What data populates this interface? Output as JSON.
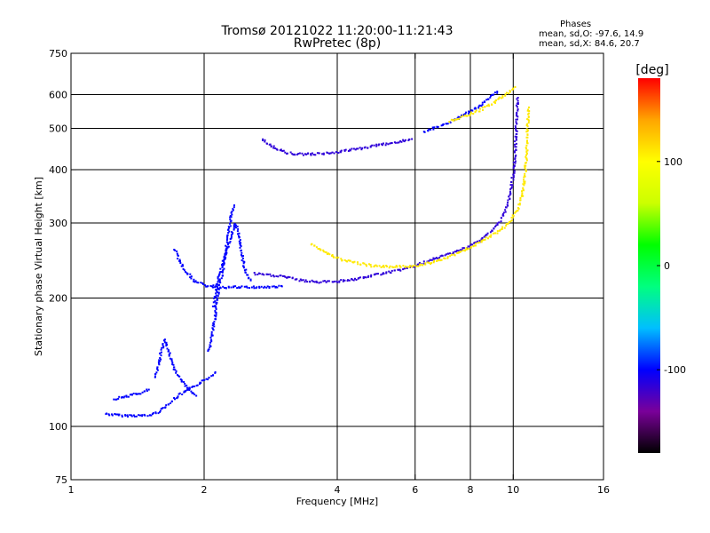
{
  "header": {
    "title_line1": "Tromsø 20121022 11:20:00-11:21:43",
    "title_line2": "RwPretec (8p)"
  },
  "phases": {
    "title": "Phases",
    "o_line": "mean, sd,O: -97.6, 14.9",
    "x_line": "mean, sd,X: 84.6, 20.7"
  },
  "chart_data": {
    "type": "scatter",
    "title": "Tromsø 20121022 11:20:00-11:21:43",
    "subtitle": "RwPretec (8p)",
    "xlabel": "Frequency [MHz]",
    "ylabel": "Stationary phase Virtual Height [km]",
    "x_scale": "log",
    "y_scale": "log",
    "xlim": [
      1,
      16
    ],
    "ylim": [
      75,
      750
    ],
    "x_ticks": [
      1,
      2,
      4,
      6,
      8,
      10,
      16
    ],
    "x_tick_labels": [
      "1",
      "2",
      "4",
      "6",
      "8",
      "10",
      "16"
    ],
    "y_ticks": [
      75,
      100,
      200,
      300,
      400,
      500,
      600,
      750
    ],
    "y_tick_labels": [
      "75",
      "100",
      "200",
      "300",
      "400",
      "500",
      "600",
      "750"
    ],
    "x_grid": [
      2,
      4,
      6,
      8,
      10
    ],
    "y_grid": [
      100,
      200,
      300,
      400,
      500,
      600
    ],
    "grid": true,
    "colorbar": {
      "label": "[deg]",
      "min": -180,
      "max": 180,
      "ticks": [
        100,
        0,
        -100
      ],
      "tick_labels": [
        "100",
        "0",
        "-100"
      ],
      "colors": [
        "#000000",
        "#7a0099",
        "#0000ff",
        "#00bfff",
        "#00ff7f",
        "#00ff00",
        "#ccff00",
        "#ffff00",
        "#ffa500",
        "#ff0000"
      ]
    },
    "traces": [
      {
        "mode": "O",
        "phase": -100,
        "points": [
          [
            1.2,
            107
          ],
          [
            1.3,
            106
          ],
          [
            1.4,
            106
          ],
          [
            1.5,
            106
          ],
          [
            1.57,
            108
          ],
          [
            1.65,
            112
          ],
          [
            1.75,
            118
          ],
          [
            1.85,
            122
          ],
          [
            1.95,
            126
          ],
          [
            2.05,
            130
          ],
          [
            2.12,
            134
          ]
        ]
      },
      {
        "mode": "O",
        "phase": -100,
        "points": [
          [
            1.25,
            116
          ],
          [
            1.35,
            118
          ],
          [
            1.45,
            120
          ],
          [
            1.5,
            122
          ]
        ]
      },
      {
        "mode": "O",
        "phase": -100,
        "points": [
          [
            1.55,
            130
          ],
          [
            1.58,
            140
          ],
          [
            1.6,
            150
          ],
          [
            1.63,
            160
          ],
          [
            1.68,
            145
          ],
          [
            1.72,
            135
          ],
          [
            1.78,
            128
          ],
          [
            1.85,
            122
          ],
          [
            1.92,
            118
          ]
        ]
      },
      {
        "mode": "O",
        "phase": -100,
        "points": [
          [
            2.05,
            150
          ],
          [
            2.1,
            170
          ],
          [
            2.13,
            190
          ],
          [
            2.16,
            210
          ],
          [
            2.2,
            230
          ],
          [
            2.24,
            260
          ],
          [
            2.28,
            290
          ],
          [
            2.31,
            320
          ],
          [
            2.34,
            330
          ]
        ]
      },
      {
        "mode": "O",
        "phase": -100,
        "points": [
          [
            2.1,
            190
          ],
          [
            2.15,
            220
          ],
          [
            2.2,
            240
          ],
          [
            2.28,
            270
          ],
          [
            2.35,
            300
          ],
          [
            2.4,
            280
          ],
          [
            2.44,
            250
          ],
          [
            2.48,
            230
          ],
          [
            2.55,
            220
          ]
        ]
      },
      {
        "mode": "O",
        "phase": -100,
        "points": [
          [
            1.72,
            260
          ],
          [
            1.76,
            245
          ],
          [
            1.82,
            230
          ],
          [
            1.9,
            220
          ],
          [
            2.0,
            214
          ],
          [
            2.2,
            212
          ],
          [
            2.5,
            212
          ],
          [
            2.8,
            212
          ],
          [
            3.0,
            213
          ]
        ]
      },
      {
        "mode": "O",
        "phase": -115,
        "points": [
          [
            2.6,
            228
          ],
          [
            3.0,
            225
          ],
          [
            3.3,
            220
          ],
          [
            3.6,
            218
          ],
          [
            4.0,
            219
          ],
          [
            4.5,
            222
          ],
          [
            5.0,
            228
          ],
          [
            5.5,
            232
          ],
          [
            6.0,
            238
          ],
          [
            6.5,
            245
          ],
          [
            7.0,
            252
          ],
          [
            7.5,
            258
          ],
          [
            8.0,
            265
          ],
          [
            8.5,
            275
          ],
          [
            9.0,
            290
          ],
          [
            9.3,
            300
          ],
          [
            9.6,
            320
          ],
          [
            9.85,
            350
          ],
          [
            10.0,
            390
          ],
          [
            10.1,
            430
          ],
          [
            10.15,
            480
          ],
          [
            10.2,
            550
          ],
          [
            10.25,
            590
          ]
        ]
      },
      {
        "mode": "O",
        "phase": -115,
        "points": [
          [
            2.7,
            470
          ],
          [
            2.8,
            460
          ],
          [
            2.9,
            450
          ],
          [
            3.1,
            437
          ],
          [
            3.3,
            435
          ],
          [
            3.5,
            435
          ],
          [
            3.8,
            437
          ],
          [
            4.2,
            443
          ],
          [
            4.6,
            450
          ],
          [
            5.0,
            457
          ],
          [
            5.5,
            465
          ],
          [
            5.9,
            472
          ]
        ]
      },
      {
        "mode": "O",
        "phase": -100,
        "points": [
          [
            6.3,
            490
          ],
          [
            6.8,
            505
          ],
          [
            7.3,
            520
          ],
          [
            7.8,
            540
          ],
          [
            8.2,
            555
          ],
          [
            8.6,
            575
          ],
          [
            9.0,
            600
          ],
          [
            9.2,
            610
          ]
        ]
      },
      {
        "mode": "X",
        "phase": 110,
        "points": [
          [
            3.5,
            268
          ],
          [
            3.7,
            258
          ],
          [
            4.0,
            248
          ],
          [
            4.4,
            242
          ],
          [
            4.8,
            238
          ],
          [
            5.2,
            237
          ],
          [
            5.6,
            237
          ],
          [
            6.0,
            238
          ],
          [
            6.5,
            242
          ],
          [
            7.0,
            248
          ],
          [
            7.5,
            255
          ],
          [
            8.0,
            263
          ],
          [
            8.5,
            272
          ],
          [
            9.0,
            282
          ],
          [
            9.5,
            292
          ],
          [
            9.9,
            305
          ],
          [
            10.2,
            320
          ],
          [
            10.45,
            345
          ],
          [
            10.6,
            380
          ],
          [
            10.7,
            420
          ],
          [
            10.75,
            470
          ],
          [
            10.8,
            520
          ],
          [
            10.85,
            560
          ]
        ]
      },
      {
        "mode": "X",
        "phase": 110,
        "points": [
          [
            7.2,
            520
          ],
          [
            7.8,
            535
          ],
          [
            8.4,
            550
          ],
          [
            8.9,
            570
          ],
          [
            9.4,
            590
          ],
          [
            9.8,
            610
          ],
          [
            10.1,
            625
          ]
        ]
      }
    ]
  }
}
